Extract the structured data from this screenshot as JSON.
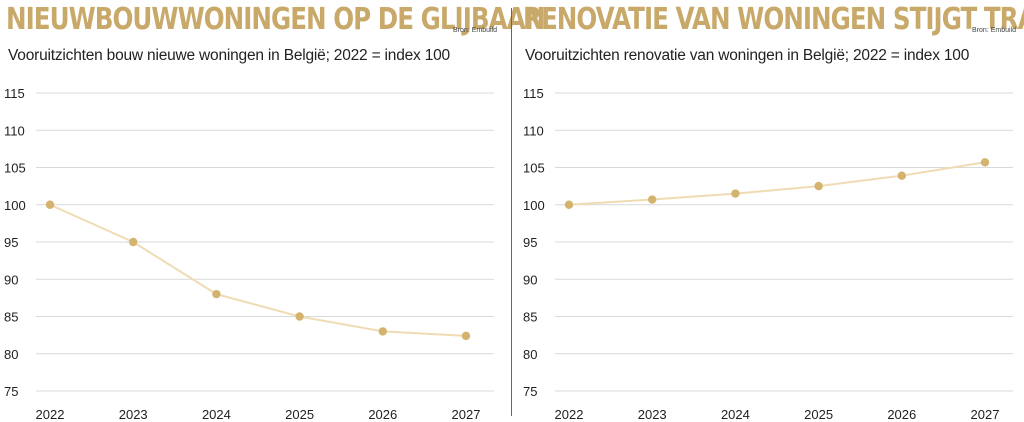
{
  "colors": {
    "accent": "#c8a96a",
    "line": "#efdcb4",
    "marker": "#d4b36f",
    "grid": "#d9d9d9",
    "text": "#222222"
  },
  "chart_data": [
    {
      "type": "line",
      "title": "NIEUWBOUWWONINGEN OP DE GLIJBAAN",
      "subtitle": "Vooruitzichten bouw nieuwe woningen in België; 2022 = index 100",
      "source": "Bron: Embuild",
      "xlabel": "",
      "ylabel": "",
      "x": [
        "2022",
        "2023",
        "2024",
        "2025",
        "2026",
        "2027"
      ],
      "series": [
        {
          "values": [
            100,
            95,
            88,
            85,
            83,
            82.4
          ]
        }
      ],
      "ylim": [
        75,
        115
      ],
      "yticks": [
        75,
        80,
        85,
        90,
        95,
        100,
        105,
        110,
        115
      ],
      "grid": true,
      "legend": "none"
    },
    {
      "type": "line",
      "title": "RENOVATIE VAN WONINGEN STIJGT TRAAG",
      "subtitle": "Vooruitzichten renovatie van woningen in België; 2022 = index 100",
      "source": "Bron: Embuild",
      "xlabel": "",
      "ylabel": "",
      "x": [
        "2022",
        "2023",
        "2024",
        "2025",
        "2026",
        "2027"
      ],
      "series": [
        {
          "values": [
            100,
            100.7,
            101.5,
            102.5,
            103.9,
            105.7
          ]
        }
      ],
      "ylim": [
        75,
        115
      ],
      "yticks": [
        75,
        80,
        85,
        90,
        95,
        100,
        105,
        110,
        115
      ],
      "grid": true,
      "legend": "none"
    }
  ]
}
